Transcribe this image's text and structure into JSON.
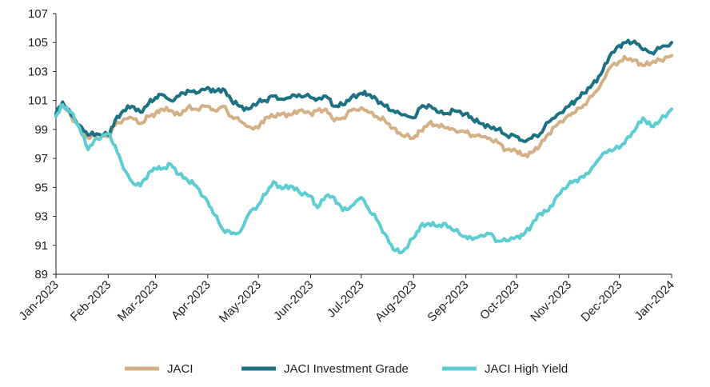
{
  "chart_data": {
    "type": "line",
    "title": "",
    "xlabel": "",
    "ylabel": "",
    "ylim": [
      89,
      107
    ],
    "y_ticks": [
      89,
      91,
      93,
      95,
      97,
      99,
      101,
      103,
      105,
      107
    ],
    "y_tick_labels": [
      "89",
      "91",
      "93",
      "95",
      "97",
      "99",
      "101",
      "103",
      "105",
      "107"
    ],
    "x_ticks": [
      "2023-01-01",
      "2023-02-01",
      "2023-03-01",
      "2023-04-01",
      "2023-05-01",
      "2023-06-01",
      "2023-07-01",
      "2023-08-01",
      "2023-09-01",
      "2023-10-01",
      "2023-11-01",
      "2023-12-01",
      "2024-01-01"
    ],
    "x_tick_labels": [
      "Jan-2023",
      "Feb-2023",
      "Mar-2023",
      "Apr-2023",
      "May-2023",
      "Jun-2023",
      "Jul-2023",
      "Aug-2023",
      "Sep-2023",
      "Oct-2023",
      "Nov-2023",
      "Dec-2023",
      "Jan-2024"
    ],
    "grid": false,
    "legend_position": "bottom",
    "series": [
      {
        "name": "JACI",
        "color": "#d4b087",
        "x": [
          "2023-01-01",
          "2023-01-05",
          "2023-01-10",
          "2023-01-15",
          "2023-01-20",
          "2023-01-25",
          "2023-02-01",
          "2023-02-05",
          "2023-02-10",
          "2023-02-15",
          "2023-02-20",
          "2023-02-25",
          "2023-03-01",
          "2023-03-05",
          "2023-03-10",
          "2023-03-15",
          "2023-03-20",
          "2023-03-25",
          "2023-04-01",
          "2023-04-05",
          "2023-04-10",
          "2023-04-15",
          "2023-04-20",
          "2023-04-25",
          "2023-05-01",
          "2023-05-05",
          "2023-05-10",
          "2023-05-15",
          "2023-05-20",
          "2023-05-25",
          "2023-06-01",
          "2023-06-05",
          "2023-06-10",
          "2023-06-15",
          "2023-06-20",
          "2023-06-25",
          "2023-07-01",
          "2023-07-05",
          "2023-07-10",
          "2023-07-15",
          "2023-07-20",
          "2023-07-25",
          "2023-08-01",
          "2023-08-05",
          "2023-08-10",
          "2023-08-15",
          "2023-08-20",
          "2023-08-25",
          "2023-09-01",
          "2023-09-05",
          "2023-09-10",
          "2023-09-15",
          "2023-09-20",
          "2023-09-25",
          "2023-10-01",
          "2023-10-05",
          "2023-10-10",
          "2023-10-15",
          "2023-10-20",
          "2023-10-25",
          "2023-11-01",
          "2023-11-05",
          "2023-11-10",
          "2023-11-15",
          "2023-11-20",
          "2023-11-25",
          "2023-12-01",
          "2023-12-05",
          "2023-12-10",
          "2023-12-15",
          "2023-12-20",
          "2023-12-25",
          "2024-01-01"
        ],
        "values": [
          100.0,
          100.8,
          99.9,
          99.2,
          98.4,
          98.6,
          98.5,
          99.3,
          99.7,
          99.8,
          99.4,
          99.9,
          100.1,
          100.4,
          100.3,
          100.0,
          100.5,
          100.4,
          100.6,
          100.3,
          100.6,
          99.9,
          99.6,
          99.2,
          99.1,
          99.8,
          99.9,
          100.1,
          100.0,
          100.3,
          100.1,
          100.3,
          100.4,
          99.6,
          99.8,
          100.3,
          100.5,
          100.2,
          99.9,
          99.6,
          99.1,
          98.6,
          98.4,
          98.9,
          99.4,
          99.3,
          99.1,
          99.0,
          98.8,
          98.6,
          98.5,
          98.4,
          98.1,
          97.6,
          97.5,
          97.2,
          97.4,
          97.9,
          98.7,
          99.3,
          100.0,
          100.2,
          100.7,
          101.3,
          102.1,
          103.2,
          103.7,
          103.9,
          103.8,
          103.4,
          103.6,
          103.8,
          104.1
        ]
      },
      {
        "name": "JACI Investment Grade",
        "color": "#1c7182",
        "x": [
          "2023-01-01",
          "2023-01-05",
          "2023-01-10",
          "2023-01-15",
          "2023-01-20",
          "2023-01-25",
          "2023-02-01",
          "2023-02-05",
          "2023-02-10",
          "2023-02-15",
          "2023-02-20",
          "2023-02-25",
          "2023-03-01",
          "2023-03-05",
          "2023-03-10",
          "2023-03-15",
          "2023-03-20",
          "2023-03-25",
          "2023-04-01",
          "2023-04-05",
          "2023-04-10",
          "2023-04-15",
          "2023-04-20",
          "2023-04-25",
          "2023-05-01",
          "2023-05-05",
          "2023-05-10",
          "2023-05-15",
          "2023-05-20",
          "2023-05-25",
          "2023-06-01",
          "2023-06-05",
          "2023-06-10",
          "2023-06-15",
          "2023-06-20",
          "2023-06-25",
          "2023-07-01",
          "2023-07-05",
          "2023-07-10",
          "2023-07-15",
          "2023-07-20",
          "2023-07-25",
          "2023-08-01",
          "2023-08-05",
          "2023-08-10",
          "2023-08-15",
          "2023-08-20",
          "2023-08-25",
          "2023-09-01",
          "2023-09-05",
          "2023-09-10",
          "2023-09-15",
          "2023-09-20",
          "2023-09-25",
          "2023-10-01",
          "2023-10-05",
          "2023-10-10",
          "2023-10-15",
          "2023-10-20",
          "2023-10-25",
          "2023-11-01",
          "2023-11-05",
          "2023-11-10",
          "2023-11-15",
          "2023-11-20",
          "2023-11-25",
          "2023-12-01",
          "2023-12-05",
          "2023-12-10",
          "2023-12-15",
          "2023-12-20",
          "2023-12-25",
          "2024-01-01"
        ],
        "values": [
          100.1,
          100.9,
          100.0,
          99.3,
          98.6,
          98.7,
          98.6,
          99.6,
          100.3,
          100.6,
          100.2,
          100.8,
          101.2,
          101.4,
          101.0,
          101.3,
          101.7,
          101.5,
          101.9,
          101.6,
          101.8,
          101.0,
          100.6,
          100.4,
          100.9,
          101.0,
          101.3,
          101.1,
          101.2,
          101.4,
          101.2,
          101.1,
          101.3,
          100.6,
          100.7,
          101.2,
          101.5,
          101.4,
          101.1,
          100.6,
          100.3,
          100.0,
          99.8,
          100.5,
          100.7,
          100.2,
          100.1,
          100.3,
          100.1,
          99.7,
          99.4,
          99.2,
          99.0,
          98.6,
          98.5,
          98.2,
          98.4,
          98.7,
          99.5,
          100.0,
          100.6,
          101.0,
          101.5,
          102.1,
          102.8,
          104.0,
          104.8,
          105.0,
          105.1,
          104.5,
          104.3,
          104.6,
          105.0
        ]
      },
      {
        "name": "JACI High Yield",
        "color": "#5ecdd2",
        "x": [
          "2023-01-01",
          "2023-01-05",
          "2023-01-10",
          "2023-01-15",
          "2023-01-20",
          "2023-01-25",
          "2023-02-01",
          "2023-02-05",
          "2023-02-10",
          "2023-02-15",
          "2023-02-20",
          "2023-02-25",
          "2023-03-01",
          "2023-03-05",
          "2023-03-10",
          "2023-03-15",
          "2023-03-20",
          "2023-03-25",
          "2023-04-01",
          "2023-04-05",
          "2023-04-10",
          "2023-04-15",
          "2023-04-20",
          "2023-04-25",
          "2023-05-01",
          "2023-05-05",
          "2023-05-10",
          "2023-05-15",
          "2023-05-20",
          "2023-05-25",
          "2023-06-01",
          "2023-06-05",
          "2023-06-10",
          "2023-06-15",
          "2023-06-20",
          "2023-06-25",
          "2023-07-01",
          "2023-07-05",
          "2023-07-10",
          "2023-07-15",
          "2023-07-20",
          "2023-07-25",
          "2023-08-01",
          "2023-08-05",
          "2023-08-10",
          "2023-08-15",
          "2023-08-20",
          "2023-08-25",
          "2023-09-01",
          "2023-09-05",
          "2023-09-10",
          "2023-09-15",
          "2023-09-20",
          "2023-09-25",
          "2023-10-01",
          "2023-10-05",
          "2023-10-10",
          "2023-10-15",
          "2023-10-20",
          "2023-10-25",
          "2023-11-01",
          "2023-11-05",
          "2023-11-10",
          "2023-11-15",
          "2023-11-20",
          "2023-11-25",
          "2023-12-01",
          "2023-12-05",
          "2023-12-10",
          "2023-12-15",
          "2023-12-20",
          "2023-12-25",
          "2024-01-01"
        ],
        "values": [
          99.9,
          100.7,
          100.2,
          99.1,
          97.6,
          98.4,
          98.7,
          97.9,
          96.3,
          95.4,
          95.1,
          96.0,
          96.3,
          96.3,
          96.6,
          95.9,
          95.5,
          95.1,
          94.0,
          93.1,
          92.1,
          91.8,
          91.9,
          93.1,
          93.8,
          94.5,
          95.4,
          94.9,
          95.1,
          94.7,
          94.4,
          93.6,
          94.4,
          94.3,
          93.4,
          93.7,
          94.3,
          93.6,
          92.8,
          91.8,
          90.7,
          90.5,
          91.5,
          92.3,
          92.5,
          92.3,
          92.5,
          92.0,
          91.6,
          91.4,
          91.7,
          91.8,
          91.3,
          91.3,
          91.6,
          91.7,
          92.4,
          93.2,
          93.4,
          94.4,
          95.2,
          95.5,
          95.7,
          96.4,
          97.1,
          97.6,
          97.7,
          98.3,
          98.9,
          99.8,
          99.2,
          99.6,
          100.4
        ]
      }
    ]
  }
}
